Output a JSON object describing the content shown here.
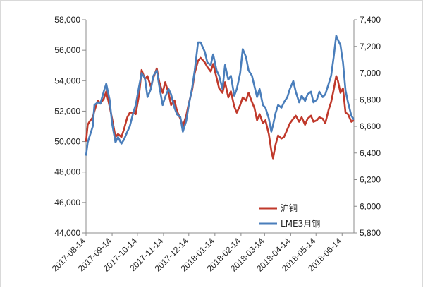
{
  "colors": {
    "hu_copper": "#c0392b",
    "lme_copper": "#4a7ebb",
    "axis": "#8c8c8c"
  },
  "chart_data": {
    "type": "line",
    "x_labels": [
      "2017-08-14",
      "2017-09-14",
      "2017-10-14",
      "2017-11-14",
      "2017-12-14",
      "2018-01-14",
      "2018-02-14",
      "2018-03-14",
      "2018-04-14",
      "2018-05-14",
      "2018-06-14"
    ],
    "y_left": {
      "ylim": [
        44000,
        58000
      ],
      "ticks": [
        "44,000",
        "46,000",
        "48,000",
        "50,000",
        "52,000",
        "54,000",
        "56,000",
        "58,000"
      ]
    },
    "y_right": {
      "ylim": [
        5800,
        7400
      ],
      "ticks": [
        "5,800",
        "6,000",
        "6,200",
        "6,400",
        "6,600",
        "6,800",
        "7,000",
        "7,200",
        "7,400"
      ]
    },
    "legend": {
      "placement": "bottom-right"
    },
    "grid": false,
    "series": [
      {
        "name": "沪铜",
        "axis": "left",
        "color": "#c0392b",
        "points": [
          [
            "2017-08-14",
            50000
          ],
          [
            "2017-08-16",
            51100
          ],
          [
            "2017-08-18",
            51300
          ],
          [
            "2017-08-22",
            51600
          ],
          [
            "2017-08-24",
            52000
          ],
          [
            "2017-08-28",
            52700
          ],
          [
            "2017-08-31",
            52500
          ],
          [
            "2017-09-04",
            52800
          ],
          [
            "2017-09-07",
            53300
          ],
          [
            "2017-09-11",
            52300
          ],
          [
            "2017-09-14",
            51500
          ],
          [
            "2017-09-18",
            50300
          ],
          [
            "2017-09-21",
            50500
          ],
          [
            "2017-09-25",
            50300
          ],
          [
            "2017-09-28",
            50800
          ],
          [
            "2017-10-02",
            51600
          ],
          [
            "2017-10-05",
            51900
          ],
          [
            "2017-10-09",
            51900
          ],
          [
            "2017-10-12",
            51800
          ],
          [
            "2017-10-16",
            53100
          ],
          [
            "2017-10-19",
            54700
          ],
          [
            "2017-10-23",
            54100
          ],
          [
            "2017-10-26",
            54300
          ],
          [
            "2017-10-30",
            53600
          ],
          [
            "2017-11-02",
            54200
          ],
          [
            "2017-11-06",
            54800
          ],
          [
            "2017-11-09",
            53900
          ],
          [
            "2017-11-13",
            53200
          ],
          [
            "2017-11-16",
            53900
          ],
          [
            "2017-11-20",
            53200
          ],
          [
            "2017-11-23",
            52400
          ],
          [
            "2017-11-27",
            52700
          ],
          [
            "2017-11-30",
            52000
          ],
          [
            "2017-12-04",
            51500
          ],
          [
            "2017-12-07",
            51000
          ],
          [
            "2017-12-11",
            51700
          ],
          [
            "2017-12-14",
            52500
          ],
          [
            "2017-12-18",
            53400
          ],
          [
            "2017-12-21",
            54500
          ],
          [
            "2017-12-25",
            55300
          ],
          [
            "2017-12-28",
            55500
          ],
          [
            "2018-01-02",
            55200
          ],
          [
            "2018-01-05",
            54900
          ],
          [
            "2018-01-09",
            54600
          ],
          [
            "2018-01-12",
            55100
          ],
          [
            "2018-01-16",
            54200
          ],
          [
            "2018-01-19",
            53500
          ],
          [
            "2018-01-23",
            53200
          ],
          [
            "2018-01-26",
            53900
          ],
          [
            "2018-01-30",
            52900
          ],
          [
            "2018-02-02",
            53300
          ],
          [
            "2018-02-06",
            52300
          ],
          [
            "2018-02-09",
            51900
          ],
          [
            "2018-02-13",
            52400
          ],
          [
            "2018-02-16",
            52900
          ],
          [
            "2018-02-20",
            52700
          ],
          [
            "2018-02-23",
            53200
          ],
          [
            "2018-02-27",
            52600
          ],
          [
            "2018-03-02",
            52200
          ],
          [
            "2018-03-05",
            51400
          ],
          [
            "2018-03-08",
            51800
          ],
          [
            "2018-03-12",
            51200
          ],
          [
            "2018-03-15",
            51400
          ],
          [
            "2018-03-19",
            50500
          ],
          [
            "2018-03-22",
            49400
          ],
          [
            "2018-03-24",
            48900
          ],
          [
            "2018-03-27",
            49800
          ],
          [
            "2018-03-30",
            50400
          ],
          [
            "2018-04-03",
            50200
          ],
          [
            "2018-04-06",
            50300
          ],
          [
            "2018-04-10",
            50800
          ],
          [
            "2018-04-13",
            51200
          ],
          [
            "2018-04-17",
            51500
          ],
          [
            "2018-04-20",
            51700
          ],
          [
            "2018-04-24",
            51300
          ],
          [
            "2018-04-27",
            51600
          ],
          [
            "2018-05-01",
            51100
          ],
          [
            "2018-05-04",
            51500
          ],
          [
            "2018-05-08",
            51700
          ],
          [
            "2018-05-11",
            51300
          ],
          [
            "2018-05-15",
            51400
          ],
          [
            "2018-05-18",
            51600
          ],
          [
            "2018-05-22",
            51500
          ],
          [
            "2018-05-25",
            51200
          ],
          [
            "2018-05-29",
            52100
          ],
          [
            "2018-06-01",
            52600
          ],
          [
            "2018-06-04",
            53400
          ],
          [
            "2018-06-07",
            54300
          ],
          [
            "2018-06-09",
            54000
          ],
          [
            "2018-06-12",
            53200
          ],
          [
            "2018-06-15",
            53500
          ],
          [
            "2018-06-18",
            51900
          ],
          [
            "2018-06-21",
            51800
          ],
          [
            "2018-06-25",
            51300
          ],
          [
            "2018-06-28",
            51400
          ]
        ]
      },
      {
        "name": "LME3月铜",
        "axis": "right",
        "color": "#4a7ebb",
        "points": [
          [
            "2017-08-14",
            6380
          ],
          [
            "2017-08-16",
            6480
          ],
          [
            "2017-08-18",
            6520
          ],
          [
            "2017-08-22",
            6600
          ],
          [
            "2017-08-24",
            6760
          ],
          [
            "2017-08-28",
            6780
          ],
          [
            "2017-08-31",
            6770
          ],
          [
            "2017-09-04",
            6860
          ],
          [
            "2017-09-07",
            6920
          ],
          [
            "2017-09-11",
            6800
          ],
          [
            "2017-09-14",
            6620
          ],
          [
            "2017-09-18",
            6480
          ],
          [
            "2017-09-21",
            6520
          ],
          [
            "2017-09-25",
            6470
          ],
          [
            "2017-09-28",
            6500
          ],
          [
            "2017-10-02",
            6560
          ],
          [
            "2017-10-05",
            6600
          ],
          [
            "2017-10-09",
            6700
          ],
          [
            "2017-10-12",
            6760
          ],
          [
            "2017-10-16",
            6900
          ],
          [
            "2017-10-19",
            7000
          ],
          [
            "2017-10-23",
            6960
          ],
          [
            "2017-10-26",
            6820
          ],
          [
            "2017-10-30",
            6880
          ],
          [
            "2017-11-02",
            6980
          ],
          [
            "2017-11-06",
            7020
          ],
          [
            "2017-11-09",
            6900
          ],
          [
            "2017-11-13",
            6760
          ],
          [
            "2017-11-16",
            6820
          ],
          [
            "2017-11-20",
            6880
          ],
          [
            "2017-11-23",
            6840
          ],
          [
            "2017-11-27",
            6740
          ],
          [
            "2017-11-30",
            6690
          ],
          [
            "2017-12-04",
            6670
          ],
          [
            "2017-12-07",
            6560
          ],
          [
            "2017-12-11",
            6640
          ],
          [
            "2017-12-14",
            6760
          ],
          [
            "2017-12-18",
            6890
          ],
          [
            "2017-12-21",
            7020
          ],
          [
            "2017-12-25",
            7230
          ],
          [
            "2017-12-28",
            7230
          ],
          [
            "2018-01-02",
            7160
          ],
          [
            "2018-01-05",
            7080
          ],
          [
            "2018-01-09",
            7060
          ],
          [
            "2018-01-12",
            7140
          ],
          [
            "2018-01-16",
            7020
          ],
          [
            "2018-01-19",
            6980
          ],
          [
            "2018-01-23",
            6880
          ],
          [
            "2018-01-26",
            7060
          ],
          [
            "2018-01-30",
            6950
          ],
          [
            "2018-02-02",
            6980
          ],
          [
            "2018-02-06",
            6830
          ],
          [
            "2018-02-09",
            6880
          ],
          [
            "2018-02-13",
            7000
          ],
          [
            "2018-02-16",
            7180
          ],
          [
            "2018-02-20",
            7120
          ],
          [
            "2018-02-23",
            7020
          ],
          [
            "2018-02-27",
            6980
          ],
          [
            "2018-03-02",
            6900
          ],
          [
            "2018-03-05",
            6820
          ],
          [
            "2018-03-08",
            6880
          ],
          [
            "2018-03-12",
            6760
          ],
          [
            "2018-03-15",
            6740
          ],
          [
            "2018-03-19",
            6660
          ],
          [
            "2018-03-22",
            6560
          ],
          [
            "2018-03-24",
            6610
          ],
          [
            "2018-03-27",
            6700
          ],
          [
            "2018-03-30",
            6760
          ],
          [
            "2018-04-03",
            6740
          ],
          [
            "2018-04-06",
            6780
          ],
          [
            "2018-04-10",
            6820
          ],
          [
            "2018-04-13",
            6880
          ],
          [
            "2018-04-17",
            6940
          ],
          [
            "2018-04-20",
            6860
          ],
          [
            "2018-04-24",
            6780
          ],
          [
            "2018-04-27",
            6830
          ],
          [
            "2018-05-01",
            6790
          ],
          [
            "2018-05-04",
            6840
          ],
          [
            "2018-05-08",
            6860
          ],
          [
            "2018-05-11",
            6780
          ],
          [
            "2018-05-15",
            6800
          ],
          [
            "2018-05-18",
            6860
          ],
          [
            "2018-05-22",
            6820
          ],
          [
            "2018-05-25",
            6840
          ],
          [
            "2018-05-29",
            6920
          ],
          [
            "2018-06-01",
            6980
          ],
          [
            "2018-06-04",
            7120
          ],
          [
            "2018-06-07",
            7280
          ],
          [
            "2018-06-09",
            7250
          ],
          [
            "2018-06-12",
            7210
          ],
          [
            "2018-06-15",
            7080
          ],
          [
            "2018-06-18",
            6870
          ],
          [
            "2018-06-21",
            6780
          ],
          [
            "2018-06-25",
            6680
          ],
          [
            "2018-06-28",
            6650
          ]
        ]
      }
    ]
  }
}
